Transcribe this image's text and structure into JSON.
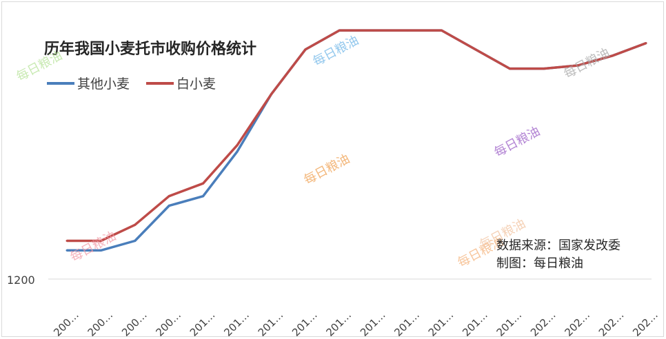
{
  "chart_data": {
    "type": "line",
    "title": "历年我国小麦托市收购价格统计",
    "xlabel": "",
    "ylabel": "",
    "categories": [
      "200…",
      "200…",
      "200…",
      "200…",
      "201…",
      "201…",
      "201…",
      "201…",
      "201…",
      "201…",
      "201…",
      "201…",
      "201…",
      "201…",
      "202…",
      "202…",
      "202…",
      "202…"
    ],
    "ylim": [
      1200,
      2700
    ],
    "yticks": [
      "1200"
    ],
    "series": [
      {
        "name": "其他小麦",
        "color": "#4a7ebb",
        "values": [
          1380,
          1380,
          1440,
          1660,
          1720,
          2000,
          2360,
          2640,
          2760,
          2760,
          2760,
          2760,
          2640,
          2520,
          2520,
          2540,
          2600,
          2680
        ]
      },
      {
        "name": "白小麦",
        "color": "#be4b48",
        "values": [
          1440,
          1440,
          1540,
          1720,
          1800,
          2040,
          2360,
          2640,
          2760,
          2760,
          2760,
          2760,
          2640,
          2520,
          2520,
          2540,
          2600,
          2680
        ]
      }
    ],
    "grid": false,
    "legend_position": "top-left"
  },
  "annotations": {
    "source_line": "数据来源：国家发改委",
    "maker_line": "制图：每日粮油"
  },
  "watermarks": [
    {
      "text": "每日粮油",
      "color": "#b7e39a"
    },
    {
      "text": "每日粮油",
      "color": "#6fb6e8"
    },
    {
      "text": "每日粮油",
      "color": "#a8a8a8"
    },
    {
      "text": "每日粮油",
      "color": "#f0a050"
    },
    {
      "text": "每日粮油",
      "color": "#9a5cc6"
    },
    {
      "text": "每日粮油",
      "color": "#f29aa6"
    },
    {
      "text": "每日粮油",
      "color": "#f5b27a"
    },
    {
      "text": "每日粮油",
      "color": "#f2c3a0"
    }
  ]
}
